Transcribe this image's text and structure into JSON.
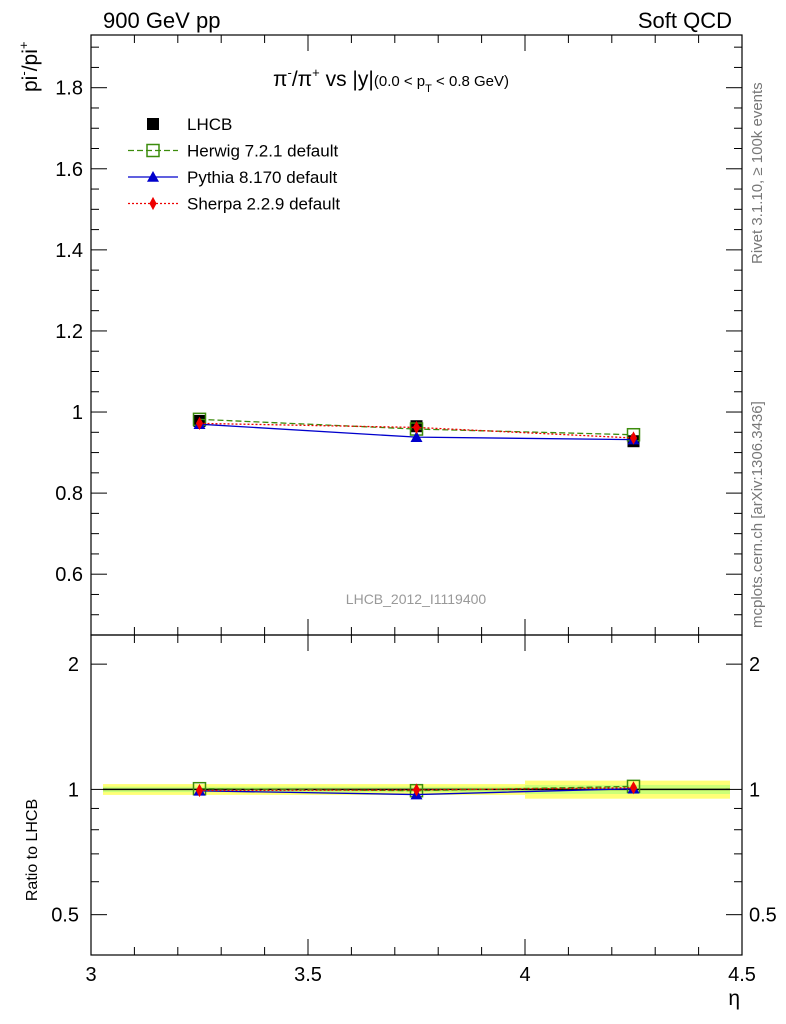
{
  "header": {
    "left": "900 GeV pp",
    "right": "Soft QCD"
  },
  "side_labels": {
    "rivet": "Rivet 3.1.10, ≥ 100k events",
    "mcplots": "mcplots.cern.ch [arXiv:1306.3436]"
  },
  "chart_data": [
    {
      "type": "line",
      "title_parts": {
        "a": "π",
        "a_sup": "-",
        "slash": "/π",
        "b_sup": "+",
        "vs": " vs |y|",
        "range_pre": "(0.0 < p",
        "range_sub": "T",
        "range_post": " < 0.8 GeV)"
      },
      "ylabel_parts": {
        "a": "pi",
        "a_sup": "-",
        "b": "/pi",
        "b_sup": "+"
      },
      "watermark": "LHCB_2012_I1119400",
      "xlim": [
        3,
        4.5
      ],
      "ylim": [
        0.45,
        1.93
      ],
      "y_ticks": [
        0.6,
        0.8,
        1,
        1.2,
        1.4,
        1.6,
        1.8
      ],
      "y_tick_labels": [
        "0.6",
        "0.8",
        "1",
        "1.2",
        "1.4",
        "1.6",
        "1.8"
      ],
      "legend_position": "top-left",
      "x": [
        3.25,
        3.75,
        4.25
      ],
      "series": [
        {
          "name": "LHCB",
          "color": "#000000",
          "marker": "square",
          "values": [
            0.978,
            0.965,
            0.928
          ]
        },
        {
          "name": "Herwig 7.2.1 default",
          "color": "#3c8c0c",
          "marker": "open-square",
          "dash": "dashed",
          "values": [
            0.982,
            0.958,
            0.944
          ]
        },
        {
          "name": "Pythia 8.170 default",
          "color": "#0000cc",
          "marker": "triangle",
          "dash": "solid",
          "values": [
            0.97,
            0.938,
            0.932
          ]
        },
        {
          "name": "Sherpa 2.2.9 default",
          "color": "#ee0000",
          "marker": "diamond",
          "dash": "dotted",
          "values": [
            0.972,
            0.962,
            0.936
          ]
        }
      ]
    },
    {
      "type": "line",
      "ylabel": "Ratio to LHCB",
      "xlabel": "η",
      "xlim": [
        3,
        4.5
      ],
      "ylim": [
        0.4,
        2.35
      ],
      "log_y": true,
      "y_ticks": [
        0.5,
        1,
        2
      ],
      "y_tick_labels": [
        "0.5",
        "1",
        "2"
      ],
      "x_ticks": [
        3,
        3.5,
        4,
        4.5
      ],
      "x_tick_labels": [
        "3",
        "3.5",
        "4",
        "4.5"
      ],
      "x": [
        3.25,
        3.75,
        4.25
      ],
      "band": [
        {
          "x": [
            3.0,
            3.5
          ],
          "stat_lo": 0.985,
          "stat_hi": 1.015,
          "tot_lo": 0.97,
          "tot_hi": 1.03
        },
        {
          "x": [
            3.5,
            4.0
          ],
          "stat_lo": 0.985,
          "stat_hi": 1.015,
          "tot_lo": 0.97,
          "tot_hi": 1.03
        },
        {
          "x": [
            4.0,
            4.5
          ],
          "stat_lo": 0.975,
          "stat_hi": 1.025,
          "tot_lo": 0.95,
          "tot_hi": 1.05
        }
      ],
      "series": [
        {
          "name": "Herwig 7.2.1 default",
          "color": "#3c8c0c",
          "marker": "open-square",
          "dash": "dashed",
          "values": [
            1.004,
            0.993,
            1.017
          ]
        },
        {
          "name": "Pythia 8.170 default",
          "color": "#0000cc",
          "marker": "triangle",
          "dash": "solid",
          "values": [
            0.992,
            0.972,
            1.004
          ]
        },
        {
          "name": "Sherpa 2.2.9 default",
          "color": "#ee0000",
          "marker": "diamond",
          "dash": "dotted",
          "values": [
            0.994,
            0.997,
            1.009
          ]
        }
      ]
    }
  ]
}
